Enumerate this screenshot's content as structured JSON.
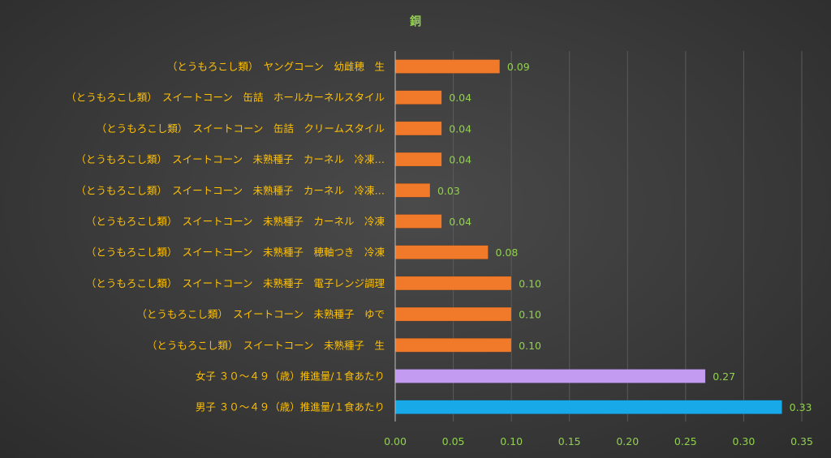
{
  "chart_data": {
    "type": "bar",
    "orientation": "horizontal",
    "title": "銅",
    "xlabel": "",
    "ylabel": "",
    "xlim": [
      0,
      0.35
    ],
    "ticks": [
      "0.00",
      "0.05",
      "0.10",
      "0.15",
      "0.20",
      "0.25",
      "0.30",
      "0.35"
    ],
    "grid": true,
    "legend": "none",
    "bars": [
      {
        "label": "（とうもろこし類）　ヤングコーン　幼雌穂　生",
        "value": 0.09,
        "display": "0.09",
        "color": "#f07a2a"
      },
      {
        "label": "（とうもろこし類）　スイートコーン　缶詰　ホールカーネルスタイル",
        "value": 0.04,
        "display": "0.04",
        "color": "#f07a2a"
      },
      {
        "label": "（とうもろこし類）　スイートコーン　缶詰　クリームスタイル",
        "value": 0.04,
        "display": "0.04",
        "color": "#f07a2a"
      },
      {
        "label": "（とうもろこし類）　スイートコーン　未熟種子　カーネル　冷凍…",
        "value": 0.04,
        "display": "0.04",
        "color": "#f07a2a"
      },
      {
        "label": "（とうもろこし類）　スイートコーン　未熟種子　カーネル　冷凍…",
        "value": 0.03,
        "display": "0.03",
        "color": "#f07a2a"
      },
      {
        "label": "（とうもろこし類）　スイートコーン　未熟種子　カーネル　冷凍",
        "value": 0.04,
        "display": "0.04",
        "color": "#f07a2a"
      },
      {
        "label": "（とうもろこし類）　スイートコーン　未熟種子　穂軸つき　冷凍",
        "value": 0.08,
        "display": "0.08",
        "color": "#f07a2a"
      },
      {
        "label": "（とうもろこし類）　スイートコーン　未熟種子　電子レンジ調理",
        "value": 0.1,
        "display": "0.10",
        "color": "#f07a2a"
      },
      {
        "label": "（とうもろこし類）　スイートコーン　未熟種子　ゆで",
        "value": 0.1,
        "display": "0.10",
        "color": "#f07a2a"
      },
      {
        "label": "（とうもろこし類）　スイートコーン　未熟種子　生",
        "value": 0.1,
        "display": "0.10",
        "color": "#f07a2a"
      },
      {
        "label": "女子 ３０～４９（歳）推進量/１食あたり",
        "value": 0.267,
        "display": "0.27",
        "color": "#c39bf0"
      },
      {
        "label": "男子 ３０～４９（歳）推進量/１食あたり",
        "value": 0.333,
        "display": "0.33",
        "color": "#18a9e8"
      }
    ]
  }
}
